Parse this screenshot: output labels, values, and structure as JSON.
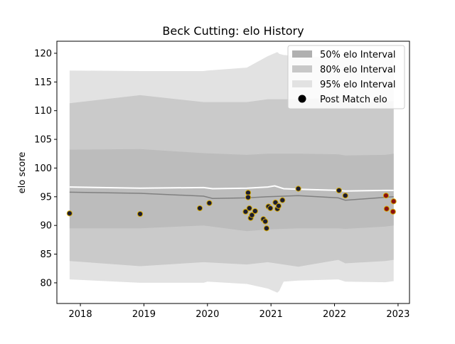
{
  "chart_data": {
    "type": "line",
    "title": "Beck Cutting: elo History",
    "xlabel": "",
    "ylabel": "elo score",
    "xlim": [
      2017.63,
      2023.18
    ],
    "ylim": [
      76.4,
      122.1
    ],
    "x_ticks": [
      2018,
      2019,
      2020,
      2021,
      2022,
      2023
    ],
    "y_ticks": [
      80,
      85,
      90,
      95,
      100,
      105,
      110,
      115,
      120
    ],
    "grid": false,
    "legend_position": "top-right",
    "legend": [
      {
        "label": "50% elo Interval",
        "kind": "band",
        "color": "#b0b0b0"
      },
      {
        "label": "80% elo Interval",
        "kind": "band",
        "color": "#c8c8c8"
      },
      {
        "label": "95% elo Interval",
        "kind": "band",
        "color": "#e2e2e2"
      },
      {
        "label": "Post Match elo",
        "kind": "marker",
        "color": "#000000"
      }
    ],
    "colors": {
      "band95": "#e2e2e2",
      "band80": "#cacaca",
      "band50": "#bcbcbc",
      "median_line": "#808080",
      "upper_line": "#ffffff",
      "marker_fill": "#1c1c30",
      "marker_edge": "#d4a800",
      "marker_fill_recent": "#8b1010"
    },
    "series": [
      {
        "name": "95% elo Interval",
        "x": [
          2017.83,
          2018.94,
          2019.94,
          2020.0,
          2020.62,
          2020.95,
          2021.1,
          2021.13,
          2021.2,
          2021.43,
          2022.06,
          2022.17,
          2022.8,
          2022.93
        ],
        "lower": [
          80.6,
          80.0,
          80.0,
          80.2,
          79.8,
          79.0,
          78.3,
          78.6,
          80.2,
          80.4,
          80.6,
          80.2,
          80.1,
          80.3
        ],
        "upper": [
          117.0,
          116.9,
          116.9,
          117.0,
          117.5,
          119.5,
          120.2,
          119.9,
          119.7,
          119.5,
          119.3,
          119.3,
          119.4,
          119.5
        ]
      },
      {
        "name": "80% elo Interval",
        "x": [
          2017.83,
          2018.94,
          2019.94,
          2020.62,
          2020.95,
          2021.43,
          2022.06,
          2022.17,
          2022.8,
          2022.93
        ],
        "lower": [
          83.8,
          82.9,
          83.6,
          83.2,
          83.6,
          82.8,
          84.0,
          83.4,
          83.8,
          84.0
        ],
        "upper": [
          111.3,
          112.7,
          111.5,
          111.5,
          112.0,
          112.0,
          112.2,
          111.5,
          111.6,
          111.7
        ]
      },
      {
        "name": "50% elo Interval",
        "x": [
          2017.83,
          2018.94,
          2019.94,
          2020.62,
          2020.95,
          2021.43,
          2022.06,
          2022.17,
          2022.8,
          2022.93
        ],
        "lower": [
          89.5,
          89.5,
          90.0,
          89.0,
          89.3,
          89.5,
          89.5,
          89.4,
          89.8,
          90.0
        ],
        "upper": [
          103.2,
          103.3,
          102.6,
          102.3,
          102.5,
          102.5,
          102.4,
          102.2,
          102.3,
          102.5
        ]
      },
      {
        "name": "median",
        "x": [
          2017.83,
          2018.94,
          2019.94,
          2020.08,
          2020.62,
          2020.95,
          2021.43,
          2022.06,
          2022.17,
          2022.8,
          2022.93
        ],
        "values": [
          95.8,
          95.6,
          95.1,
          94.7,
          94.8,
          95.0,
          95.2,
          94.8,
          94.4,
          94.9,
          95.0
        ]
      },
      {
        "name": "upper",
        "x": [
          2017.83,
          2018.94,
          2019.94,
          2020.08,
          2020.62,
          2020.95,
          2021.06,
          2021.2,
          2021.43,
          2022.06,
          2022.17,
          2022.8,
          2022.93
        ],
        "values": [
          96.7,
          96.5,
          96.6,
          96.4,
          96.5,
          96.7,
          96.9,
          96.4,
          96.3,
          96.1,
          96.0,
          96.1,
          96.1
        ]
      },
      {
        "name": "Post Match elo",
        "x": [
          2017.83,
          2018.94,
          2019.88,
          2020.03,
          2020.6,
          2020.64,
          2020.64,
          2020.66,
          2020.68,
          2020.7,
          2020.75,
          2020.88,
          2020.91,
          2020.93,
          2020.96,
          2020.99,
          2021.07,
          2021.1,
          2021.12,
          2021.18,
          2021.43,
          2022.07,
          2022.17
        ],
        "values": [
          92.1,
          92.0,
          93.0,
          93.9,
          92.4,
          95.7,
          94.9,
          93.0,
          91.3,
          91.8,
          92.5,
          91.1,
          90.7,
          89.5,
          93.3,
          93.0,
          94.0,
          92.9,
          93.4,
          94.4,
          96.4,
          96.1,
          95.2
        ]
      },
      {
        "name": "Post Match elo (recent)",
        "x": [
          2022.81,
          2022.82,
          2022.92,
          2022.93
        ],
        "values": [
          95.2,
          92.9,
          92.4,
          94.2
        ]
      }
    ]
  }
}
